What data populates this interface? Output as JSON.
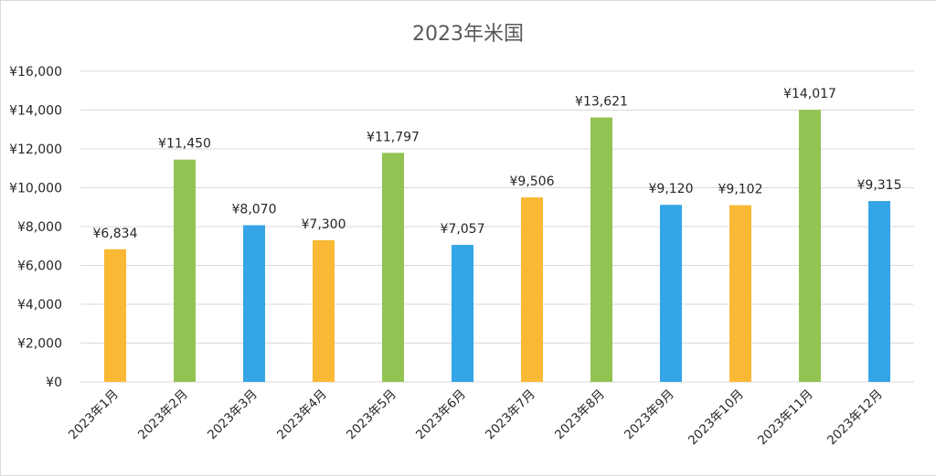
{
  "chart_data": {
    "type": "bar",
    "title": "2023年米国",
    "xlabel": "",
    "ylabel": "",
    "ylim": [
      0,
      16000
    ],
    "ytick_step": 2000,
    "currency_prefix": "¥",
    "grid": true,
    "legend": "none",
    "categories": [
      "2023年1月",
      "2023年2月",
      "2023年3月",
      "2023年4月",
      "2023年5月",
      "2023年6月",
      "2023年7月",
      "2023年8月",
      "2023年9月",
      "2023年10月",
      "2023年11月",
      "2023年12月"
    ],
    "values": [
      6834,
      11450,
      8070,
      7300,
      11797,
      7057,
      9506,
      13621,
      9120,
      9102,
      14017,
      9315
    ],
    "data_labels": [
      "¥6,834",
      "¥11,450",
      "¥8,070",
      "¥7,300",
      "¥11,797",
      "¥7,057",
      "¥9,506",
      "¥13,621",
      "¥9,120",
      "¥9,102",
      "¥14,017",
      "¥9,315"
    ],
    "bar_colors": [
      "#f9b935",
      "#92c353",
      "#34a5e7",
      "#f9b935",
      "#92c353",
      "#34a5e7",
      "#f9b935",
      "#92c353",
      "#34a5e7",
      "#f9b935",
      "#92c353",
      "#34a5e7"
    ],
    "grid_color": "#d9d9d9"
  }
}
